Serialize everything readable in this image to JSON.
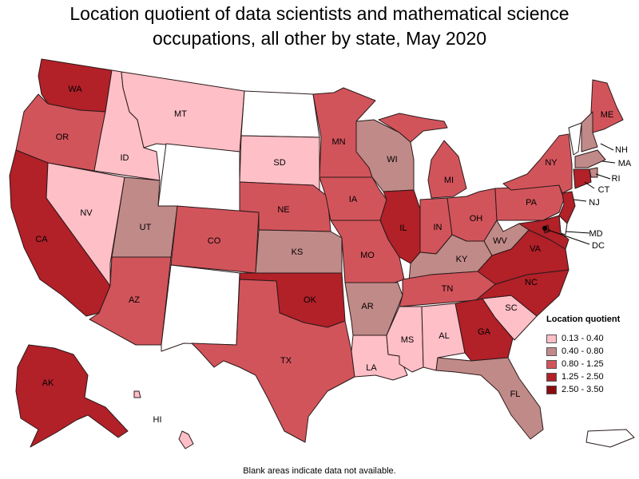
{
  "title_line1": "Location quotient of data scientists and mathematical science",
  "title_line2": "occupations, all other by state, May 2020",
  "legend": {
    "title": "Location quotient",
    "bins": [
      {
        "label": "0.13 - 0.40",
        "color": "#ffbfc7"
      },
      {
        "label": "0.40 - 0.80",
        "color": "#c08a88"
      },
      {
        "label": "0.80 - 1.25",
        "color": "#d2545b"
      },
      {
        "label": "1.25 - 2.50",
        "color": "#b22028"
      },
      {
        "label": "2.50 - 3.50",
        "color": "#8a0a10"
      }
    ]
  },
  "no_data_color": "#ffffff",
  "footnote": "Blank areas indicate data not available.",
  "states": [
    {
      "id": "WA",
      "bin": 3
    },
    {
      "id": "OR",
      "bin": 2
    },
    {
      "id": "CA",
      "bin": 3
    },
    {
      "id": "ID",
      "bin": 0
    },
    {
      "id": "NV",
      "bin": 0
    },
    {
      "id": "MT",
      "bin": 0
    },
    {
      "id": "WY",
      "bin": null
    },
    {
      "id": "UT",
      "bin": 1
    },
    {
      "id": "AZ",
      "bin": 2
    },
    {
      "id": "CO",
      "bin": 2
    },
    {
      "id": "NM",
      "bin": null
    },
    {
      "id": "ND",
      "bin": null
    },
    {
      "id": "SD",
      "bin": 0
    },
    {
      "id": "NE",
      "bin": 2
    },
    {
      "id": "KS",
      "bin": 1
    },
    {
      "id": "OK",
      "bin": 3
    },
    {
      "id": "TX",
      "bin": 2
    },
    {
      "id": "MN",
      "bin": 2
    },
    {
      "id": "IA",
      "bin": 2
    },
    {
      "id": "MO",
      "bin": 2
    },
    {
      "id": "AR",
      "bin": 1
    },
    {
      "id": "LA",
      "bin": 0
    },
    {
      "id": "WI",
      "bin": 1
    },
    {
      "id": "IL",
      "bin": 3
    },
    {
      "id": "MI",
      "bin": 2
    },
    {
      "id": "IN",
      "bin": 2
    },
    {
      "id": "OH",
      "bin": 2
    },
    {
      "id": "KY",
      "bin": 1
    },
    {
      "id": "TN",
      "bin": 2
    },
    {
      "id": "MS",
      "bin": 0
    },
    {
      "id": "AL",
      "bin": 0
    },
    {
      "id": "GA",
      "bin": 3
    },
    {
      "id": "FL",
      "bin": 1
    },
    {
      "id": "SC",
      "bin": 0
    },
    {
      "id": "NC",
      "bin": 3
    },
    {
      "id": "VA",
      "bin": 3
    },
    {
      "id": "WV",
      "bin": 1
    },
    {
      "id": "PA",
      "bin": 2
    },
    {
      "id": "NY",
      "bin": 2
    },
    {
      "id": "ME",
      "bin": 2
    },
    {
      "id": "VT",
      "bin": null
    },
    {
      "id": "NH",
      "bin": 1
    },
    {
      "id": "MA",
      "bin": 1
    },
    {
      "id": "RI",
      "bin": 1
    },
    {
      "id": "CT",
      "bin": 3
    },
    {
      "id": "NJ",
      "bin": 3
    },
    {
      "id": "DE",
      "bin": null
    },
    {
      "id": "MD",
      "bin": 3
    },
    {
      "id": "DC",
      "bin": 4
    },
    {
      "id": "AK",
      "bin": 3
    },
    {
      "id": "HI",
      "bin": 0
    },
    {
      "id": "PR",
      "bin": null
    }
  ]
}
